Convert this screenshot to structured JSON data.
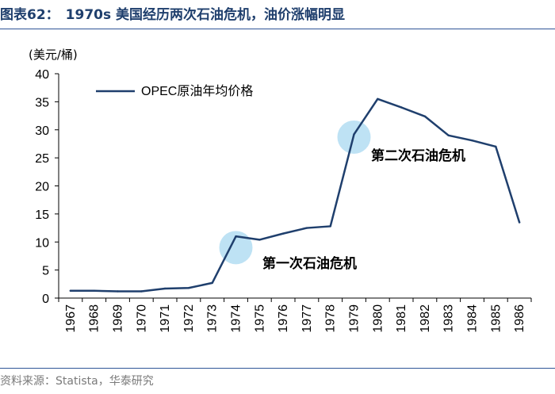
{
  "header": {
    "figure_label": "图表62：",
    "title": "1970s 美国经历两次石油危机，油价涨幅明显"
  },
  "footer": {
    "source": "资料来源：Statista，华泰研究"
  },
  "colors": {
    "title": "#1f3f6d",
    "line": "#1f3f6d",
    "rule": "#2f5597",
    "highlight": "#a8d8f0"
  },
  "chart_data": {
    "type": "line",
    "title": "",
    "ylabel": "(美元/桶)",
    "xlabel": "",
    "ylim": [
      0,
      40
    ],
    "yticks": [
      0,
      5,
      10,
      15,
      20,
      25,
      30,
      35,
      40
    ],
    "categories": [
      "1967",
      "1968",
      "1969",
      "1970",
      "1971",
      "1972",
      "1973",
      "1974",
      "1975",
      "1976",
      "1977",
      "1978",
      "1979",
      "1980",
      "1981",
      "1982",
      "1983",
      "1984",
      "1985",
      "1986"
    ],
    "series": [
      {
        "name": "OPEC原油年均价格",
        "values": [
          1.3,
          1.3,
          1.2,
          1.2,
          1.7,
          1.8,
          2.7,
          11.0,
          10.4,
          11.5,
          12.5,
          12.8,
          29.2,
          35.5,
          34.0,
          32.4,
          29.0,
          28.1,
          27.0,
          13.5
        ]
      }
    ],
    "legend": "top-left",
    "grid": false,
    "annotations": [
      {
        "text": "第一次石油危机",
        "category": "1974",
        "value": 9.0
      },
      {
        "text": "第二次石油危机",
        "category": "1979",
        "value": 28.7
      }
    ]
  }
}
